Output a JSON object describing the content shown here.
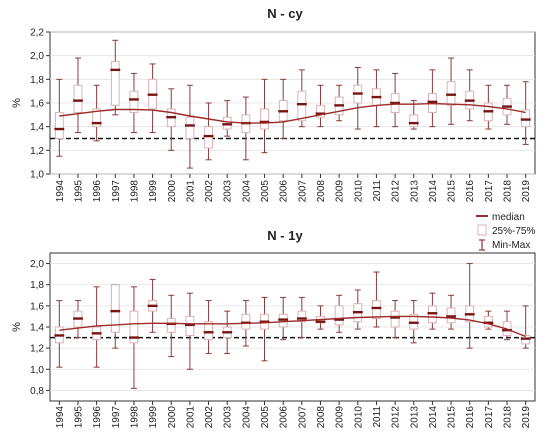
{
  "colors": {
    "median": "#7a1414",
    "box_stroke": "#d9b3b3",
    "whisker": "#8b3a3a",
    "trend": "#9e2a2a",
    "reference": "#111111",
    "grid": "#e2e2e2",
    "axis": "#333333"
  },
  "legend": {
    "items": [
      {
        "label": "median",
        "symbol": "median-marker-icon"
      },
      {
        "label": "25%-75%",
        "symbol": "box-marker-icon"
      },
      {
        "label": "Min-Max",
        "symbol": "whisker-marker-icon"
      }
    ],
    "placement": "right, between panels"
  },
  "chart_data": [
    {
      "type": "boxplot",
      "title": "N - cy",
      "ylabel": "%",
      "xlabel": "",
      "ylim": [
        1.0,
        2.2
      ],
      "yticks": [
        "1,0",
        "1,2",
        "1,4",
        "1,6",
        "1,8",
        "2,0",
        "2,2"
      ],
      "grid": true,
      "reference_line": 1.3,
      "categories": [
        "1994",
        "1995",
        "1996",
        "1997",
        "1998",
        "1999",
        "2000",
        "2001",
        "2002",
        "2003",
        "2004",
        "2005",
        "2006",
        "2007",
        "2008",
        "2009",
        "2010",
        "2011",
        "2012",
        "2013",
        "2014",
        "2015",
        "2016",
        "2017",
        "2018",
        "2019"
      ],
      "median": [
        1.38,
        1.62,
        1.43,
        1.88,
        1.63,
        1.67,
        1.48,
        1.41,
        1.32,
        1.42,
        1.43,
        1.44,
        1.53,
        1.59,
        1.51,
        1.58,
        1.68,
        1.65,
        1.6,
        1.43,
        1.61,
        1.67,
        1.62,
        1.53,
        1.57,
        1.46
      ],
      "q1": [
        1.3,
        1.52,
        1.4,
        1.58,
        1.52,
        1.55,
        1.4,
        1.3,
        1.22,
        1.38,
        1.35,
        1.38,
        1.45,
        1.45,
        1.48,
        1.5,
        1.6,
        1.58,
        1.52,
        1.4,
        1.52,
        1.58,
        1.55,
        1.45,
        1.5,
        1.4
      ],
      "q3": [
        1.52,
        1.75,
        1.55,
        1.95,
        1.7,
        1.8,
        1.55,
        1.48,
        1.4,
        1.48,
        1.5,
        1.55,
        1.62,
        1.7,
        1.58,
        1.65,
        1.75,
        1.72,
        1.68,
        1.5,
        1.68,
        1.78,
        1.7,
        1.6,
        1.64,
        1.54
      ],
      "min": [
        1.15,
        1.35,
        1.28,
        1.5,
        1.35,
        1.35,
        1.2,
        1.05,
        1.12,
        1.32,
        1.12,
        1.18,
        1.3,
        1.4,
        1.4,
        1.45,
        1.38,
        1.4,
        1.4,
        1.38,
        1.4,
        1.42,
        1.45,
        1.38,
        1.42,
        1.25
      ],
      "max": [
        1.8,
        1.98,
        1.75,
        2.13,
        1.85,
        1.93,
        1.72,
        1.75,
        1.6,
        1.62,
        1.65,
        1.8,
        1.8,
        1.88,
        1.75,
        1.75,
        1.9,
        1.88,
        1.85,
        1.62,
        1.88,
        1.98,
        1.88,
        1.75,
        1.75,
        1.78
      ],
      "trend": [
        1.49,
        1.51,
        1.53,
        1.545,
        1.545,
        1.54,
        1.52,
        1.49,
        1.465,
        1.44,
        1.43,
        1.43,
        1.44,
        1.47,
        1.5,
        1.53,
        1.56,
        1.58,
        1.59,
        1.59,
        1.595,
        1.59,
        1.585,
        1.57,
        1.55,
        1.52
      ]
    },
    {
      "type": "boxplot",
      "title": "N - 1y",
      "ylabel": "%",
      "xlabel": "",
      "ylim": [
        0.7,
        2.1
      ],
      "yticks": [
        "0,8",
        "1,0",
        "1,2",
        "1,4",
        "1,6",
        "1,8",
        "2,0"
      ],
      "grid": true,
      "reference_line": 1.3,
      "categories": [
        "1994",
        "1995",
        "1996",
        "1997",
        "1998",
        "1999",
        "2000",
        "2001",
        "2002",
        "2003",
        "2004",
        "2005",
        "2006",
        "2007",
        "2008",
        "2009",
        "2010",
        "2011",
        "2012",
        "2013",
        "2014",
        "2015",
        "2016",
        "2017",
        "2018",
        "2019"
      ],
      "median": [
        1.32,
        1.48,
        1.34,
        1.55,
        1.3,
        1.6,
        1.43,
        1.42,
        1.35,
        1.35,
        1.44,
        1.45,
        1.47,
        1.48,
        1.45,
        1.47,
        1.54,
        1.58,
        1.49,
        1.44,
        1.53,
        1.5,
        1.52,
        1.44,
        1.37,
        1.29
      ],
      "q1": [
        1.25,
        1.4,
        1.28,
        1.35,
        1.25,
        1.55,
        1.35,
        1.32,
        1.28,
        1.3,
        1.38,
        1.38,
        1.4,
        1.45,
        1.44,
        1.42,
        1.45,
        1.48,
        1.4,
        1.38,
        1.44,
        1.44,
        1.45,
        1.4,
        1.32,
        1.24
      ],
      "q3": [
        1.4,
        1.55,
        1.4,
        1.8,
        1.55,
        1.65,
        1.48,
        1.5,
        1.45,
        1.4,
        1.52,
        1.52,
        1.52,
        1.55,
        1.5,
        1.6,
        1.62,
        1.65,
        1.55,
        1.52,
        1.6,
        1.58,
        1.6,
        1.5,
        1.45,
        1.32
      ],
      "min": [
        1.02,
        1.3,
        1.02,
        1.2,
        0.82,
        1.35,
        1.12,
        1.0,
        1.15,
        1.15,
        1.22,
        1.08,
        1.28,
        1.3,
        1.38,
        1.35,
        1.38,
        1.4,
        1.3,
        1.25,
        1.38,
        1.38,
        1.2,
        1.38,
        1.28,
        1.2
      ],
      "max": [
        1.65,
        1.65,
        1.78,
        1.8,
        1.78,
        1.85,
        1.7,
        1.72,
        1.65,
        1.55,
        1.65,
        1.68,
        1.68,
        1.68,
        1.6,
        1.7,
        1.75,
        1.92,
        1.65,
        1.65,
        1.72,
        1.7,
        2.0,
        1.55,
        1.55,
        1.6
      ],
      "trend": [
        1.37,
        1.39,
        1.41,
        1.42,
        1.43,
        1.435,
        1.435,
        1.43,
        1.43,
        1.43,
        1.435,
        1.44,
        1.45,
        1.46,
        1.47,
        1.48,
        1.49,
        1.495,
        1.5,
        1.5,
        1.495,
        1.485,
        1.465,
        1.43,
        1.38,
        1.31
      ]
    }
  ]
}
